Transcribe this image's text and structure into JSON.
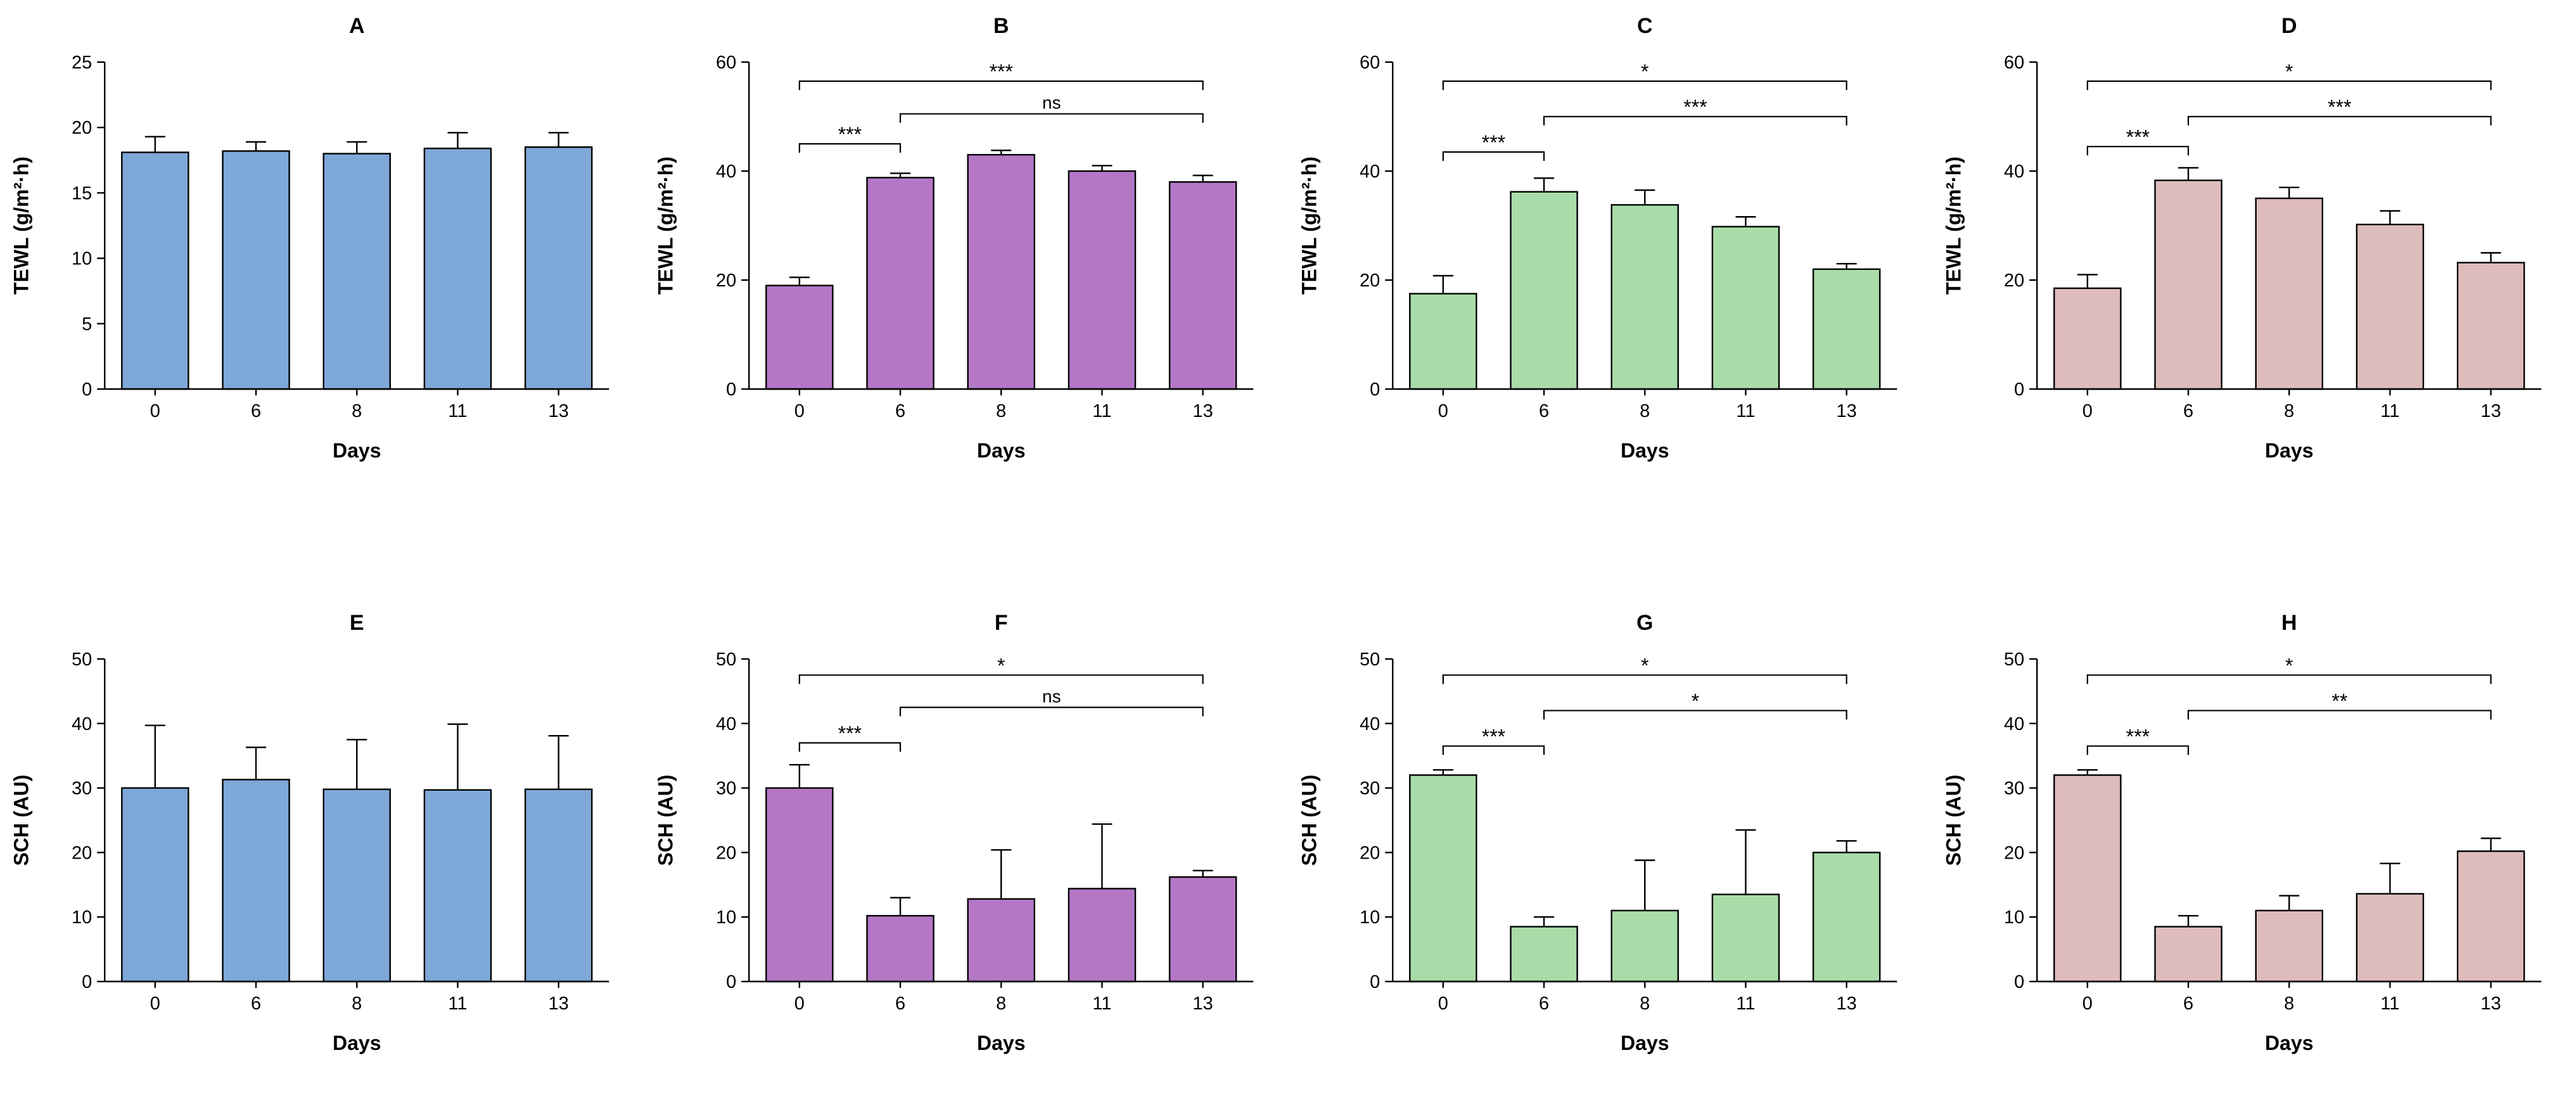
{
  "figure": {
    "background": "#FFFFFF"
  },
  "chart_data": [
    {
      "type": "bar",
      "panel_label": "A",
      "title": "A",
      "xlabel": "Days",
      "ylabel": "TEWL (g/m²·h)",
      "categories": [
        "0",
        "6",
        "8",
        "11",
        "13"
      ],
      "values": [
        18.1,
        18.2,
        18.0,
        18.4,
        18.5
      ],
      "errors": [
        1.2,
        0.7,
        0.9,
        1.2,
        1.1
      ],
      "ylim": [
        0,
        25
      ],
      "yticks": [
        0,
        5,
        10,
        15,
        20,
        25
      ],
      "bar_color": "#7EA8D8",
      "bar_border": "#000000",
      "grid": false,
      "legend": "none",
      "brackets": []
    },
    {
      "type": "bar",
      "panel_label": "B",
      "title": "B",
      "xlabel": "Days",
      "ylabel": "TEWL (g/m²·h)",
      "categories": [
        "0",
        "6",
        "8",
        "11",
        "13"
      ],
      "values": [
        19.0,
        38.8,
        43.0,
        40.0,
        38.0
      ],
      "errors": [
        1.5,
        0.8,
        0.8,
        1.0,
        1.2
      ],
      "ylim": [
        0,
        60
      ],
      "yticks": [
        0,
        20,
        40,
        60
      ],
      "bar_color": "#B477C6",
      "bar_border": "#000000",
      "grid": false,
      "legend": "none",
      "brackets": [
        {
          "from": 0,
          "to": 1,
          "label": "***",
          "y": 45
        },
        {
          "from": 1,
          "to": 4,
          "label": "ns",
          "y": 50.5
        },
        {
          "from": 0,
          "to": 4,
          "label": "***",
          "y": 56.5
        }
      ]
    },
    {
      "type": "bar",
      "panel_label": "C",
      "title": "C",
      "xlabel": "Days",
      "ylabel": "TEWL (g/m²·h)",
      "categories": [
        "0",
        "6",
        "8",
        "11",
        "13"
      ],
      "values": [
        17.5,
        36.2,
        33.8,
        29.8,
        22.0
      ],
      "errors": [
        3.3,
        2.5,
        2.7,
        1.8,
        1.0
      ],
      "ylim": [
        0,
        60
      ],
      "yticks": [
        0,
        20,
        40,
        60
      ],
      "bar_color": "#A8DCA8",
      "bar_border": "#000000",
      "grid": false,
      "legend": "none",
      "brackets": [
        {
          "from": 0,
          "to": 1,
          "label": "***",
          "y": 43.5
        },
        {
          "from": 1,
          "to": 4,
          "label": "***",
          "y": 50
        },
        {
          "from": 0,
          "to": 4,
          "label": "*",
          "y": 56.5
        }
      ]
    },
    {
      "type": "bar",
      "panel_label": "D",
      "title": "D",
      "xlabel": "Days",
      "ylabel": "TEWL (g/m²·h)",
      "categories": [
        "0",
        "6",
        "8",
        "11",
        "13"
      ],
      "values": [
        18.5,
        38.3,
        35.0,
        30.2,
        23.2
      ],
      "errors": [
        2.5,
        2.3,
        2.0,
        2.5,
        1.8
      ],
      "ylim": [
        0,
        60
      ],
      "yticks": [
        0,
        20,
        40,
        60
      ],
      "bar_color": "#DFBCBC",
      "bar_border": "#000000",
      "grid": false,
      "legend": "none",
      "brackets": [
        {
          "from": 0,
          "to": 1,
          "label": "***",
          "y": 44.5
        },
        {
          "from": 1,
          "to": 4,
          "label": "***",
          "y": 50
        },
        {
          "from": 0,
          "to": 4,
          "label": "*",
          "y": 56.5
        }
      ]
    },
    {
      "type": "bar",
      "panel_label": "E",
      "title": "E",
      "xlabel": "Days",
      "ylabel": "SCH (AU)",
      "categories": [
        "0",
        "6",
        "8",
        "11",
        "13"
      ],
      "values": [
        30.0,
        31.3,
        29.8,
        29.7,
        29.8
      ],
      "errors": [
        9.7,
        5.0,
        7.7,
        10.2,
        8.3
      ],
      "ylim": [
        0,
        50
      ],
      "yticks": [
        0,
        10,
        20,
        30,
        40,
        50
      ],
      "bar_color": "#7EA8D8",
      "bar_border": "#000000",
      "grid": false,
      "legend": "none",
      "brackets": []
    },
    {
      "type": "bar",
      "panel_label": "F",
      "title": "F",
      "xlabel": "Days",
      "ylabel": "SCH (AU)",
      "categories": [
        "0",
        "6",
        "8",
        "11",
        "13"
      ],
      "values": [
        30.0,
        10.2,
        12.8,
        14.4,
        16.2
      ],
      "errors": [
        3.6,
        2.8,
        7.6,
        10.0,
        1.0
      ],
      "ylim": [
        0,
        50
      ],
      "yticks": [
        0,
        10,
        20,
        30,
        40,
        50
      ],
      "bar_color": "#B477C6",
      "bar_border": "#000000",
      "grid": false,
      "legend": "none",
      "brackets": [
        {
          "from": 0,
          "to": 1,
          "label": "***",
          "y": 37
        },
        {
          "from": 1,
          "to": 4,
          "label": "ns",
          "y": 42.5
        },
        {
          "from": 0,
          "to": 4,
          "label": "*",
          "y": 47.5
        }
      ]
    },
    {
      "type": "bar",
      "panel_label": "G",
      "title": "G",
      "xlabel": "Days",
      "ylabel": "SCH (AU)",
      "categories": [
        "0",
        "6",
        "8",
        "11",
        "13"
      ],
      "values": [
        32.0,
        8.5,
        11.0,
        13.5,
        20.0
      ],
      "errors": [
        0.8,
        1.5,
        7.8,
        10.0,
        1.8
      ],
      "ylim": [
        0,
        50
      ],
      "yticks": [
        0,
        10,
        20,
        30,
        40,
        50
      ],
      "bar_color": "#A8DCA8",
      "bar_border": "#000000",
      "grid": false,
      "legend": "none",
      "brackets": [
        {
          "from": 0,
          "to": 1,
          "label": "***",
          "y": 36.5
        },
        {
          "from": 1,
          "to": 4,
          "label": "*",
          "y": 42
        },
        {
          "from": 0,
          "to": 4,
          "label": "*",
          "y": 47.5
        }
      ]
    },
    {
      "type": "bar",
      "panel_label": "H",
      "title": "H",
      "xlabel": "Days",
      "ylabel": "SCH (AU)",
      "categories": [
        "0",
        "6",
        "8",
        "11",
        "13"
      ],
      "values": [
        32.0,
        8.5,
        11.0,
        13.6,
        20.2
      ],
      "errors": [
        0.8,
        1.7,
        2.3,
        4.7,
        2.0
      ],
      "ylim": [
        0,
        50
      ],
      "yticks": [
        0,
        10,
        20,
        30,
        40,
        50
      ],
      "bar_color": "#DFBCBC",
      "bar_border": "#000000",
      "grid": false,
      "legend": "none",
      "brackets": [
        {
          "from": 0,
          "to": 1,
          "label": "***",
          "y": 36.5
        },
        {
          "from": 1,
          "to": 4,
          "label": "**",
          "y": 42
        },
        {
          "from": 0,
          "to": 4,
          "label": "*",
          "y": 47.5
        }
      ]
    }
  ]
}
